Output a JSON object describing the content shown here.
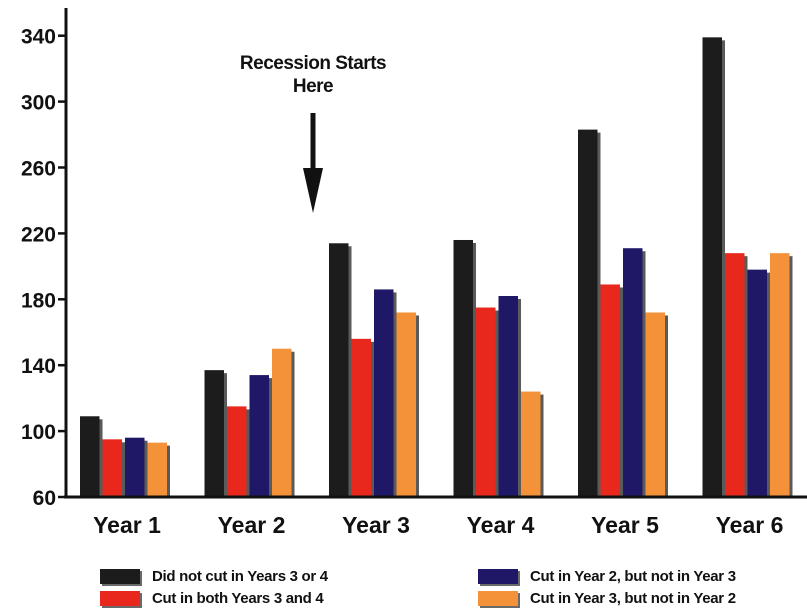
{
  "chart_data": {
    "type": "bar",
    "categories": [
      "Year 1",
      "Year 2",
      "Year 3",
      "Year 4",
      "Year 5",
      "Year 6"
    ],
    "series": [
      {
        "name": "Did not cut in Years 3 or 4",
        "color": "#1c1c1c",
        "values": [
          109,
          137,
          214,
          216,
          283,
          339
        ]
      },
      {
        "name": "Cut in both Years 3 and 4",
        "color": "#e8281c",
        "values": [
          95,
          115,
          156,
          175,
          189,
          208
        ]
      },
      {
        "name": "Cut in Year 2, but not in Year 3",
        "color": "#1e1866",
        "values": [
          96,
          134,
          186,
          182,
          211,
          198
        ]
      },
      {
        "name": "Cut in Year 3, but not in Year 2",
        "color": "#f4923a",
        "values": [
          93,
          150,
          172,
          124,
          172,
          208
        ]
      }
    ],
    "yticks": [
      60,
      100,
      140,
      180,
      220,
      260,
      300,
      340
    ],
    "ylim": [
      60,
      350
    ],
    "grid": false,
    "legend_position": "bottom",
    "annotation": {
      "lines": [
        "Recession Starts",
        "Here"
      ],
      "target_category": "Year 3"
    }
  }
}
